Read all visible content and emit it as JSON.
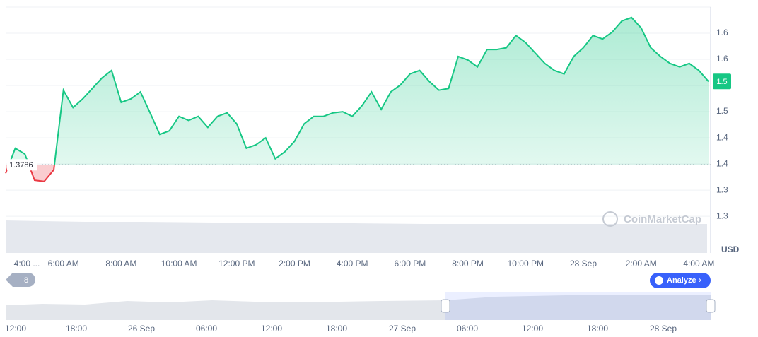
{
  "chart_data": {
    "type": "line",
    "categories": [
      "4:00 ...",
      null,
      null,
      null,
      null,
      null,
      "6:00 AM",
      null,
      null,
      null,
      null,
      null,
      "8:00 AM",
      null,
      null,
      null,
      null,
      null,
      "10:00 AM",
      null,
      null,
      null,
      null,
      null,
      "12:00 PM",
      null,
      null,
      null,
      null,
      null,
      "2:00 PM",
      null,
      null,
      null,
      null,
      null,
      "4:00 PM",
      null,
      null,
      null,
      null,
      null,
      "6:00 PM",
      null,
      null,
      null,
      null,
      null,
      "8:00 PM",
      null,
      null,
      null,
      null,
      null,
      "10:00 PM",
      null,
      null,
      null,
      null,
      null,
      "28 Sep",
      null,
      null,
      null,
      null,
      null,
      "2:00 AM",
      null,
      null,
      null,
      null,
      null,
      "4:00 AM",
      null
    ],
    "values": [
      1.364,
      1.407,
      1.397,
      1.352,
      1.35,
      1.37,
      1.507,
      1.477,
      1.492,
      1.51,
      1.528,
      1.541,
      1.486,
      1.492,
      1.504,
      1.468,
      1.431,
      1.437,
      1.462,
      1.455,
      1.462,
      1.443,
      1.462,
      1.468,
      1.449,
      1.407,
      1.413,
      1.425,
      1.389,
      1.401,
      1.419,
      1.449,
      1.462,
      1.462,
      1.468,
      1.47,
      1.462,
      1.48,
      1.504,
      1.474,
      1.504,
      1.516,
      1.535,
      1.541,
      1.522,
      1.507,
      1.51,
      1.565,
      1.559,
      1.547,
      1.577,
      1.577,
      1.58,
      1.601,
      1.589,
      1.571,
      1.553,
      1.541,
      1.535,
      1.565,
      1.58,
      1.601,
      1.595,
      1.607,
      1.626,
      1.632,
      1.614,
      1.58,
      1.565,
      1.553,
      1.547,
      1.553,
      1.541,
      1.522
    ],
    "color": "#16c784",
    "below_color": "#ea3943",
    "baseline": 1.3786,
    "price_tag": "1.5",
    "currency": "USD",
    "ylim": [
      1.261,
      1.65
    ],
    "yticks": [
      {
        "value": 1.29,
        "label": "1.3"
      },
      {
        "value": 1.335,
        "label": "1.3"
      },
      {
        "value": 1.38,
        "label": "1.4"
      },
      {
        "value": 1.425,
        "label": "1.4"
      },
      {
        "value": 1.47,
        "label": "1.5"
      },
      {
        "value": 1.515,
        "label": "1.5"
      },
      {
        "value": 1.56,
        "label": "1.6"
      },
      {
        "value": 1.605,
        "label": "1.6"
      }
    ],
    "grid": true,
    "watermark": "CoinMarketCap",
    "badge": "8",
    "button": "Analyze",
    "navigator_labels": [
      "12:00",
      "18:00",
      "26 Sep",
      "06:00",
      "12:00",
      "18:00",
      "27 Sep",
      "06:00",
      "12:00",
      "18:00",
      "28 Sep"
    ]
  }
}
